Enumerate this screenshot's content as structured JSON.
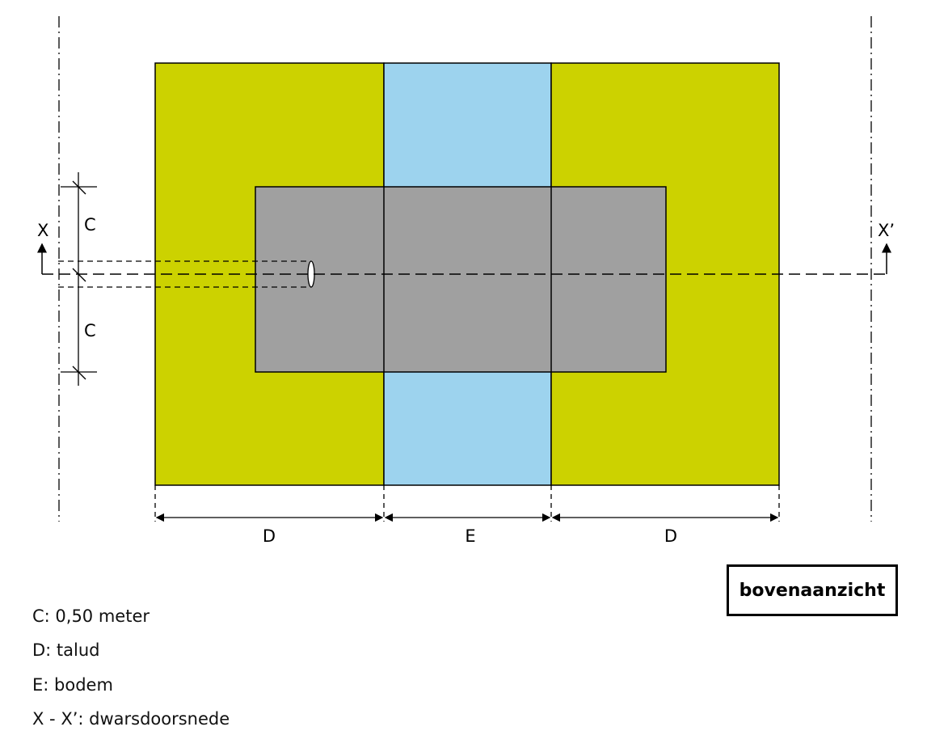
{
  "labels": {
    "c_top": "C",
    "c_bottom": "C",
    "x_left": "X",
    "x_right": "X’",
    "d_left": "D",
    "e": "E",
    "d_right": "D"
  },
  "view_title": "bovenaanzicht",
  "legend": [
    "C: 0,50 meter",
    "D: talud",
    "E: bodem",
    "X - X’: dwarsdoorsnede"
  ],
  "colors": {
    "talud": "#CCD200",
    "bodem": "#9DD3EE",
    "grey_zone": "#A0A0A0"
  }
}
